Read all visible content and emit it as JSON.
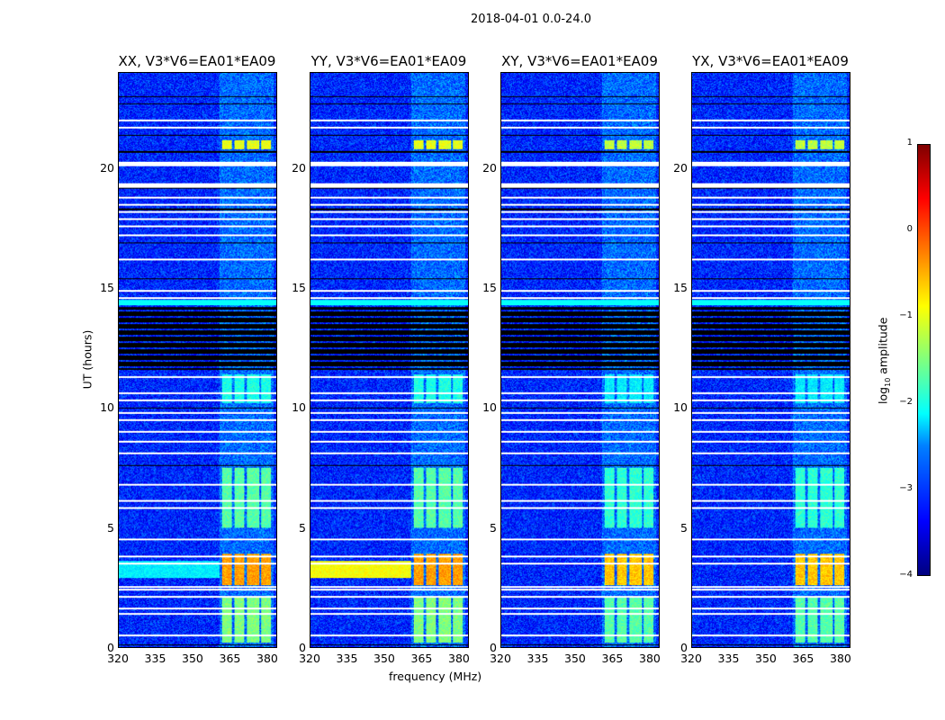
{
  "suptitle": "2018-04-01 0.0-24.0",
  "chart_data": {
    "type": "heatmap",
    "title": "2018-04-01 0.0-24.0",
    "xlabel": "frequency (MHz)",
    "ylabel": "UT (hours)",
    "xlim": [
      320,
      384
    ],
    "ylim": [
      0,
      24
    ],
    "xticks": [
      "320",
      "335",
      "350",
      "365",
      "380"
    ],
    "xtick_values": [
      320,
      335,
      350,
      365,
      380
    ],
    "yticks": [
      "0",
      "5",
      "10",
      "15",
      "20"
    ],
    "ytick_values": [
      0,
      5,
      10,
      15,
      20
    ],
    "panels": [
      {
        "title": "XX, V3*V6=EA01*EA09",
        "pol": "XX"
      },
      {
        "title": "YY, V3*V6=EA01*EA09",
        "pol": "YY"
      },
      {
        "title": "XY, V3*V6=EA01*EA09",
        "pol": "XY"
      },
      {
        "title": "YX, V3*V6=EA01*EA09",
        "pol": "YX"
      }
    ],
    "colorbar": {
      "label": "log10 amplitude",
      "label_main": "log",
      "label_sub": "10",
      "label_rest": " amplitude",
      "min": -4,
      "max": 1,
      "ticks": [
        "1",
        "0",
        "−1",
        "−2",
        "−3",
        "−4"
      ],
      "tick_values": [
        1,
        0,
        -1,
        -2,
        -3,
        -4
      ],
      "colormap": "jet"
    },
    "background_level": -3.2,
    "flagged_white_hours": [
      22.0,
      21.7,
      20.2,
      19.3,
      18.8,
      18.5,
      18.2,
      17.9,
      17.6,
      17.2,
      16.2,
      14.9,
      14.6,
      11.3,
      10.6,
      10.3,
      9.8,
      9.5,
      9.0,
      8.6,
      8.1,
      6.8,
      6.1,
      5.8,
      4.5,
      3.8,
      3.5,
      2.5,
      2.4,
      2.1,
      1.6,
      1.4,
      0.5
    ],
    "flagged_black_hours": [
      23.0,
      22.7,
      21.4,
      20.7,
      19.2,
      18.3,
      16.9,
      15.4,
      10.0,
      7.6,
      0.1
    ],
    "dropout_range_hours": [
      11.6,
      14.2
    ],
    "rfi_channels_mhz": [
      [
        362,
        366
      ],
      [
        367,
        371
      ],
      [
        372,
        377
      ],
      [
        378,
        382
      ]
    ],
    "rfi_events": [
      {
        "t": [
          0.2,
          2.1
        ],
        "level": -1.5
      },
      {
        "t": [
          2.6,
          3.9
        ],
        "level": -0.4
      },
      {
        "t": [
          5.0,
          7.5
        ],
        "level": -1.7
      },
      {
        "t": [
          10.2,
          11.4
        ],
        "level": -2.0
      },
      {
        "t": [
          20.8,
          21.2
        ],
        "level": -1.0
      }
    ]
  }
}
